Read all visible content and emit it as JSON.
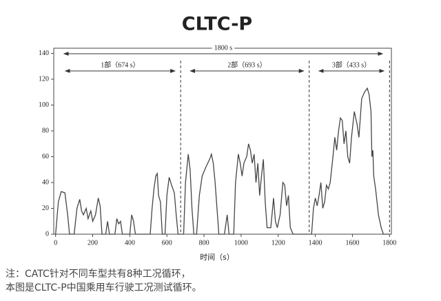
{
  "chart_data": {
    "type": "line",
    "title": "CLTC-P",
    "x_label": "时间（s）",
    "notes": [
      "注：CATC针对不同车型共有8种工况循环，",
      "本图是CLTC-P中国乘用车行驶工况测试循环。"
    ],
    "annotations": [
      "1800  s",
      "1部（674  s）",
      "2部（693  s）",
      "3部（433  s）"
    ],
    "separators": [
      674,
      1367,
      1800
    ],
    "color": "#444444",
    "xlim": [
      -10,
      1810
    ],
    "ylim": [
      0,
      144
    ],
    "xticks": [
      0,
      200,
      400,
      600,
      800,
      1000,
      1200,
      1400,
      1600,
      1800
    ],
    "yticks": [
      0,
      20,
      40,
      60,
      80,
      100,
      120,
      140
    ],
    "x": [
      0,
      15,
      30,
      50,
      65,
      75,
      100,
      115,
      130,
      140,
      150,
      165,
      175,
      190,
      200,
      215,
      230,
      240,
      250,
      270,
      280,
      290,
      320,
      330,
      340,
      350,
      360,
      400,
      410,
      420,
      430,
      510,
      520,
      530,
      540,
      548,
      555,
      565,
      575,
      590,
      600,
      612,
      625,
      640,
      650,
      660,
      674,
      690,
      700,
      715,
      725,
      735,
      745,
      760,
      775,
      790,
      810,
      830,
      840,
      850,
      860,
      870,
      880,
      910,
      925,
      935,
      960,
      970,
      985,
      995,
      1005,
      1015,
      1030,
      1040,
      1050,
      1060,
      1070,
      1080,
      1090,
      1100,
      1110,
      1120,
      1130,
      1140,
      1160,
      1175,
      1185,
      1195,
      1210,
      1225,
      1235,
      1245,
      1255,
      1265,
      1280,
      1367,
      1380,
      1390,
      1400,
      1410,
      1420,
      1430,
      1440,
      1450,
      1460,
      1470,
      1480,
      1495,
      1505,
      1515,
      1525,
      1535,
      1545,
      1555,
      1565,
      1575,
      1585,
      1595,
      1610,
      1625,
      1635,
      1650,
      1665,
      1680,
      1690,
      1700,
      1705,
      1710,
      1715,
      1725,
      1740,
      1755,
      1767,
      1800
    ],
    "values": [
      0,
      25,
      33,
      32,
      15,
      0,
      0,
      20,
      27,
      18,
      15,
      20,
      12,
      18,
      10,
      15,
      28,
      22,
      0,
      0,
      10,
      0,
      0,
      12,
      8,
      10,
      0,
      0,
      15,
      10,
      0,
      0,
      20,
      35,
      45,
      47,
      30,
      25,
      0,
      0,
      30,
      44,
      38,
      32,
      15,
      0,
      0,
      0,
      40,
      62,
      50,
      20,
      0,
      0,
      30,
      45,
      52,
      58,
      62,
      55,
      40,
      20,
      0,
      0,
      15,
      0,
      0,
      40,
      62,
      55,
      45,
      55,
      60,
      70,
      65,
      55,
      62,
      40,
      55,
      30,
      45,
      58,
      25,
      5,
      5,
      28,
      10,
      5,
      15,
      40,
      38,
      22,
      30,
      5,
      0,
      0,
      0,
      20,
      28,
      22,
      30,
      40,
      20,
      25,
      38,
      35,
      40,
      60,
      75,
      65,
      80,
      90,
      88,
      70,
      80,
      60,
      55,
      75,
      95,
      85,
      75,
      105,
      110,
      113,
      108,
      95,
      60,
      65,
      45,
      35,
      15,
      5,
      0,
      0
    ]
  }
}
